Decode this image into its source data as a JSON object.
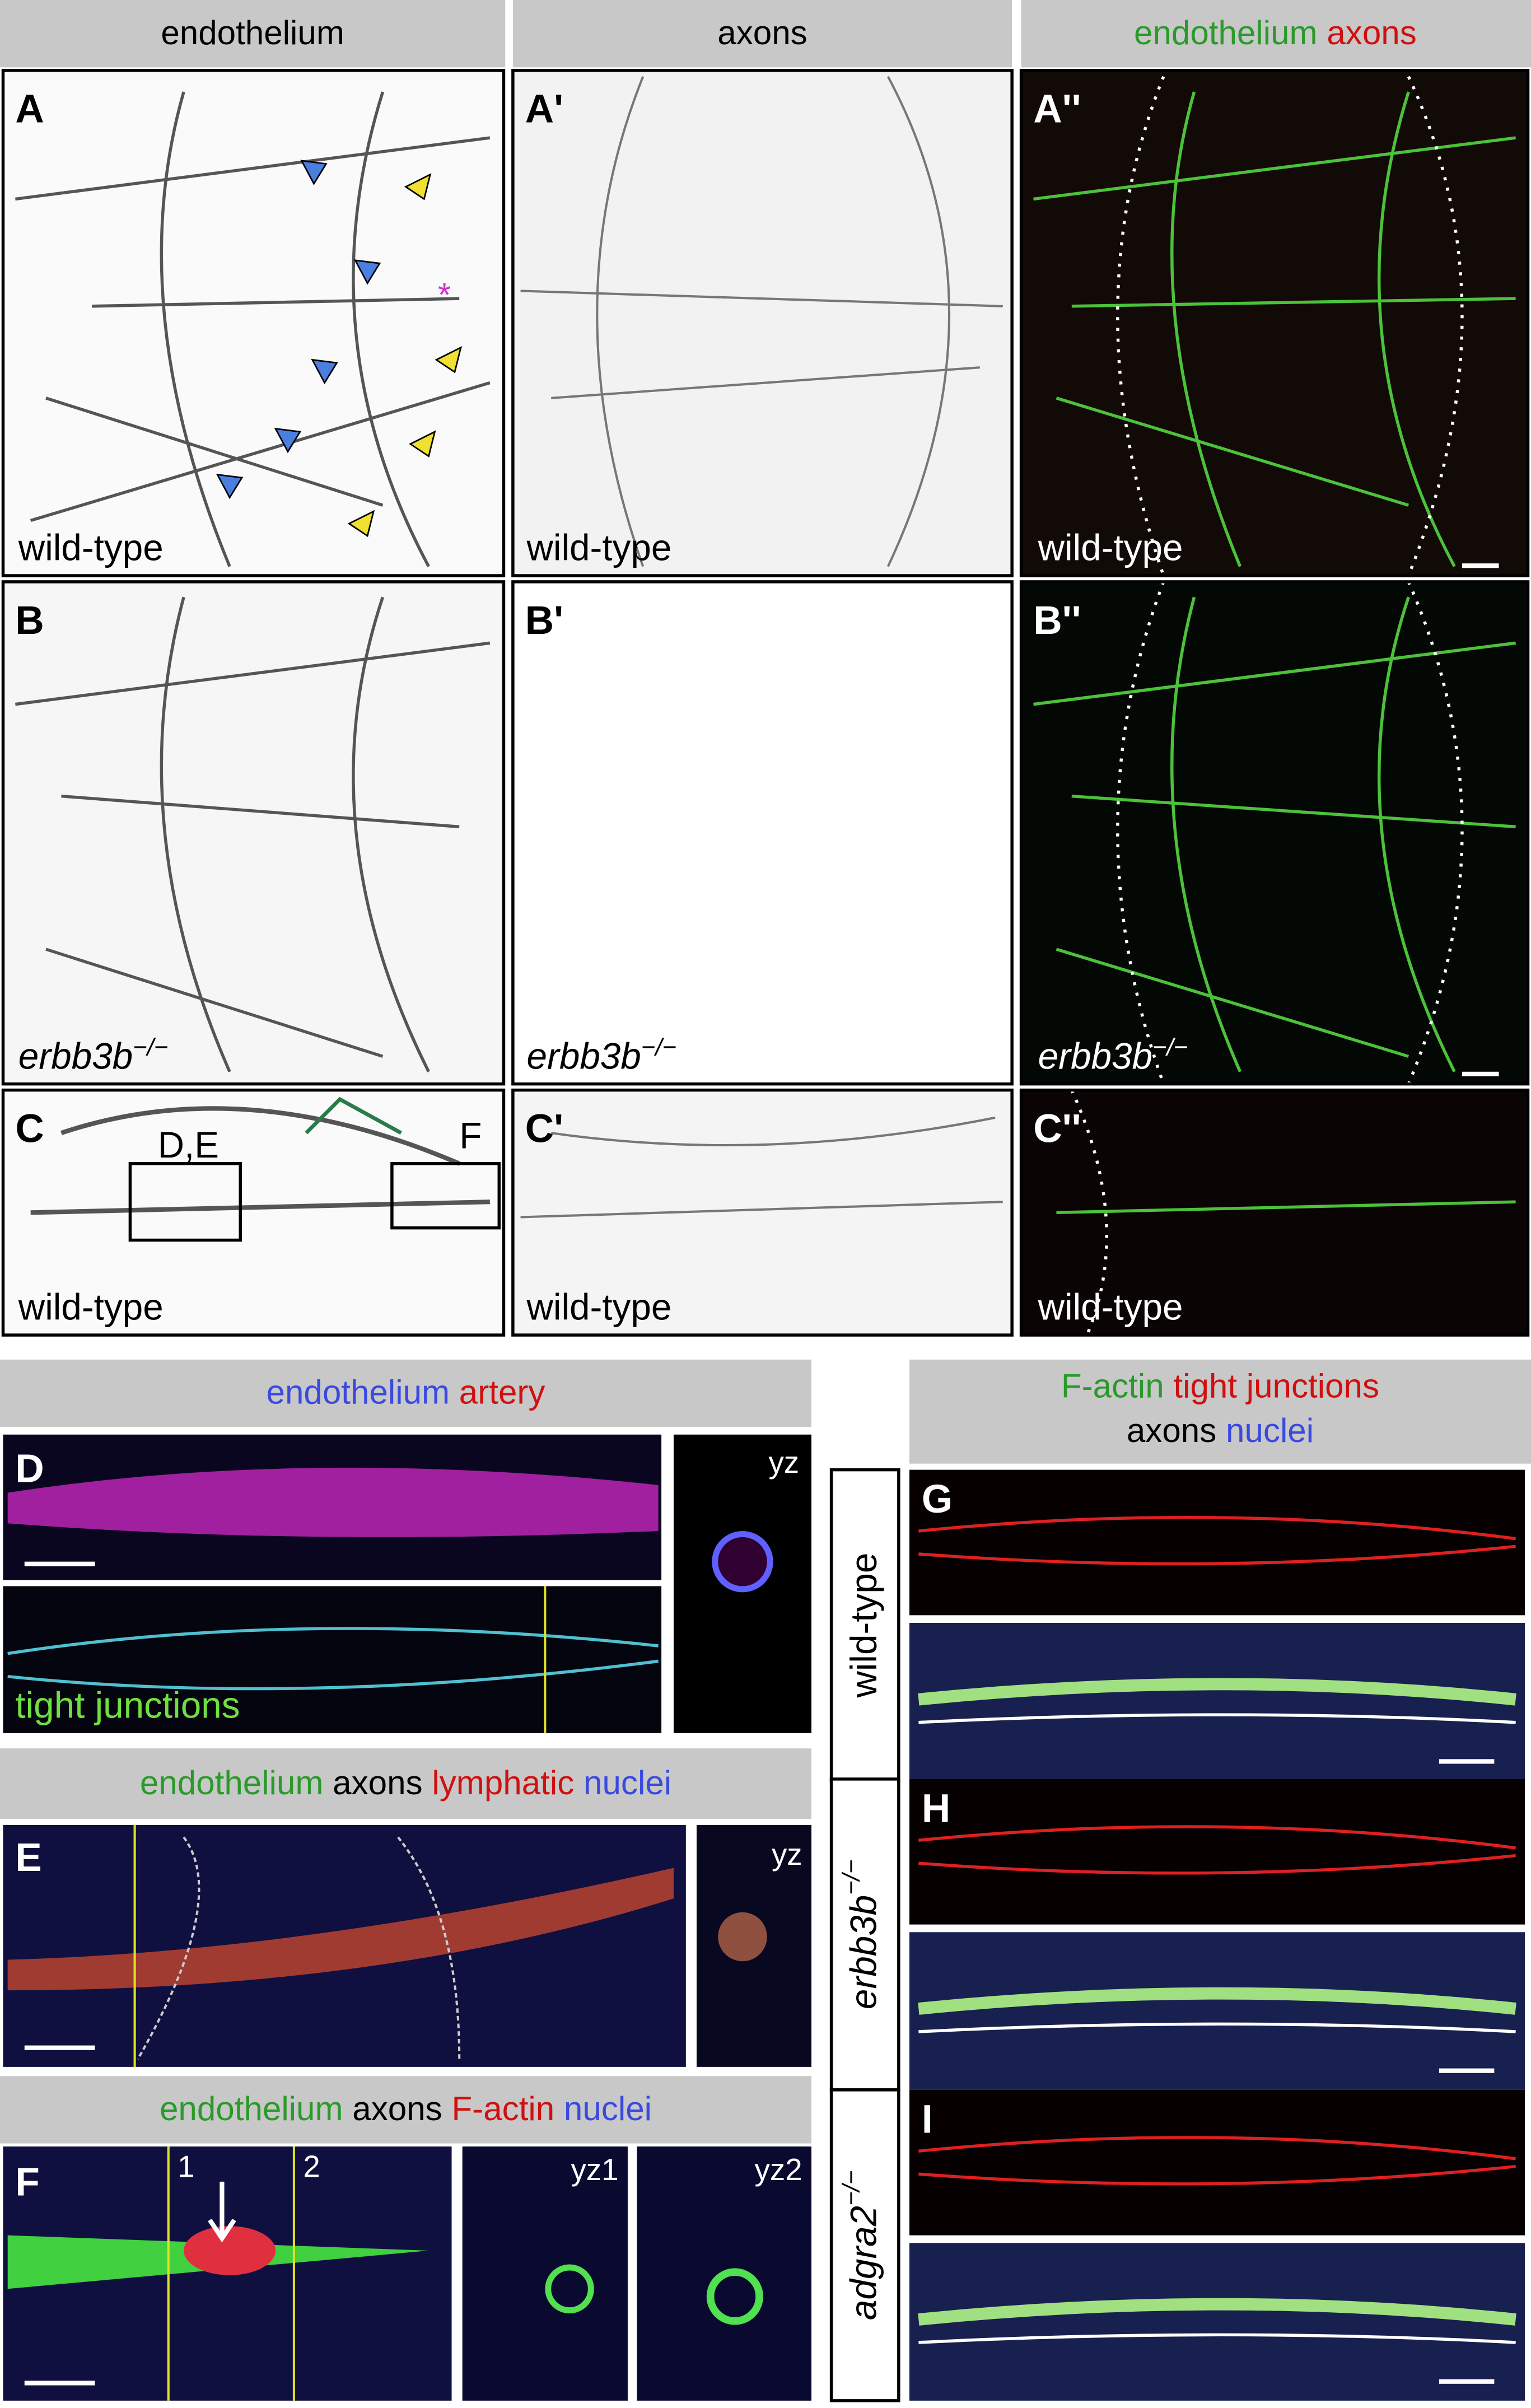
{
  "header": {
    "endothelium": "endothelium",
    "axons": "axons",
    "merged": [
      "endothelium",
      "axons"
    ]
  },
  "panels": {
    "A": {
      "label": "A",
      "genotype": "wild-type"
    },
    "A1": {
      "label": "A'",
      "genotype": "wild-type"
    },
    "A2": {
      "label": "A''",
      "genotype": "wild-type"
    },
    "B": {
      "label": "B",
      "genotype": {
        "gene": "erbb3b",
        "sup": "−/−"
      }
    },
    "B1": {
      "label": "B'",
      "genotype": {
        "gene": "erbb3b",
        "sup": "−/−"
      }
    },
    "B2": {
      "label": "B''",
      "genotype": {
        "gene": "erbb3b",
        "sup": "−/−"
      }
    },
    "C": {
      "label": "C",
      "genotype": "wild-type",
      "boxes": [
        "D,E",
        "F"
      ]
    },
    "C1": {
      "label": "C'",
      "genotype": "wild-type"
    },
    "C2": {
      "label": "C''",
      "genotype": "wild-type"
    }
  },
  "section_d": {
    "header": [
      "endothelium",
      "artery"
    ],
    "label": "D",
    "view": "yz",
    "caption": "tight junctions"
  },
  "section_e": {
    "header": [
      "endothelium",
      "axons",
      "lymphatic",
      "nuclei"
    ],
    "label": "E",
    "view": "yz"
  },
  "section_f": {
    "header": [
      "endothelium",
      "axons",
      "F-actin",
      "nuclei"
    ],
    "label": "F",
    "lines": [
      "1",
      "2"
    ],
    "views": [
      "yz1",
      "yz2"
    ]
  },
  "section_ghi": {
    "header": [
      [
        "F-actin",
        "tight junctions"
      ],
      [
        "axons",
        "nuclei"
      ]
    ],
    "rows": [
      {
        "label": "G",
        "genotype": "wild-type"
      },
      {
        "label": "H",
        "genotype": {
          "gene": "erbb3b",
          "sup": "−/−"
        }
      },
      {
        "label": "I",
        "genotype": {
          "gene": "adgra2",
          "sup": "−/−"
        }
      }
    ]
  }
}
